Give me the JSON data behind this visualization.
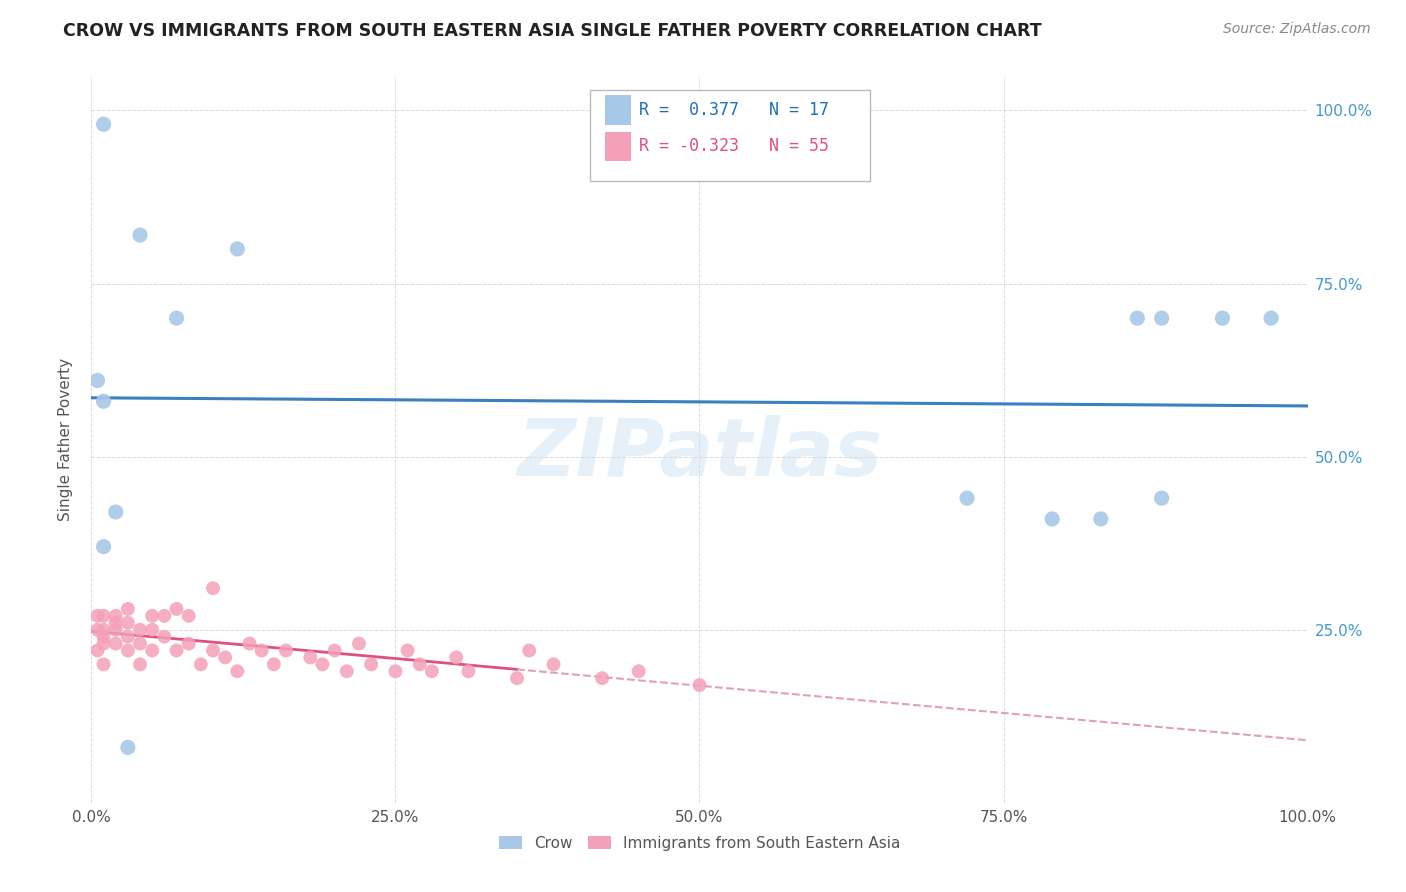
{
  "title": "CROW VS IMMIGRANTS FROM SOUTH EASTERN ASIA SINGLE FATHER POVERTY CORRELATION CHART",
  "source": "Source: ZipAtlas.com",
  "ylabel": "Single Father Poverty",
  "watermark": "ZIPatlas",
  "blue_R": 0.377,
  "blue_N": 17,
  "pink_R": -0.323,
  "pink_N": 55,
  "blue_color": "#a8c8e8",
  "pink_color": "#f4a0b8",
  "blue_line_color": "#3a7fc1",
  "pink_line_color": "#e05080",
  "pink_dash_color": "#e0a0b8",
  "background_color": "#ffffff",
  "grid_color": "#cccccc",
  "blue_x": [
    0.01,
    0.04,
    0.12,
    0.005,
    0.01,
    0.02,
    0.01,
    0.03,
    0.86,
    0.88,
    0.93,
    0.97,
    0.72,
    0.79,
    0.88,
    0.83,
    0.07
  ],
  "blue_y": [
    0.98,
    0.82,
    0.8,
    0.61,
    0.58,
    0.42,
    0.37,
    0.08,
    0.7,
    0.7,
    0.7,
    0.7,
    0.44,
    0.41,
    0.44,
    0.41,
    0.7
  ],
  "pink_x": [
    0.005,
    0.005,
    0.005,
    0.01,
    0.01,
    0.01,
    0.01,
    0.01,
    0.02,
    0.02,
    0.02,
    0.02,
    0.03,
    0.03,
    0.03,
    0.03,
    0.04,
    0.04,
    0.04,
    0.05,
    0.05,
    0.05,
    0.06,
    0.06,
    0.07,
    0.07,
    0.08,
    0.08,
    0.09,
    0.1,
    0.1,
    0.11,
    0.12,
    0.13,
    0.14,
    0.15,
    0.16,
    0.18,
    0.19,
    0.2,
    0.21,
    0.22,
    0.23,
    0.25,
    0.26,
    0.27,
    0.28,
    0.3,
    0.31,
    0.35,
    0.36,
    0.38,
    0.42,
    0.45,
    0.5
  ],
  "pink_y": [
    0.27,
    0.25,
    0.22,
    0.27,
    0.25,
    0.24,
    0.23,
    0.2,
    0.27,
    0.26,
    0.25,
    0.23,
    0.28,
    0.26,
    0.24,
    0.22,
    0.25,
    0.23,
    0.2,
    0.27,
    0.25,
    0.22,
    0.27,
    0.24,
    0.28,
    0.22,
    0.27,
    0.23,
    0.2,
    0.31,
    0.22,
    0.21,
    0.19,
    0.23,
    0.22,
    0.2,
    0.22,
    0.21,
    0.2,
    0.22,
    0.19,
    0.23,
    0.2,
    0.19,
    0.22,
    0.2,
    0.19,
    0.21,
    0.19,
    0.18,
    0.22,
    0.2,
    0.18,
    0.19,
    0.17
  ],
  "xlim": [
    0.0,
    1.0
  ],
  "ylim": [
    0.0,
    1.05
  ],
  "xticks": [
    0.0,
    0.25,
    0.5,
    0.75,
    1.0
  ],
  "yticks": [
    0.0,
    0.25,
    0.5,
    0.75,
    1.0
  ],
  "xticklabels": [
    "0.0%",
    "25.0%",
    "50.0%",
    "75.0%",
    "100.0%"
  ],
  "left_yticklabels": [
    "",
    "",
    "",
    "",
    ""
  ],
  "right_yticklabels": [
    "",
    "25.0%",
    "50.0%",
    "75.0%",
    "100.0%"
  ]
}
